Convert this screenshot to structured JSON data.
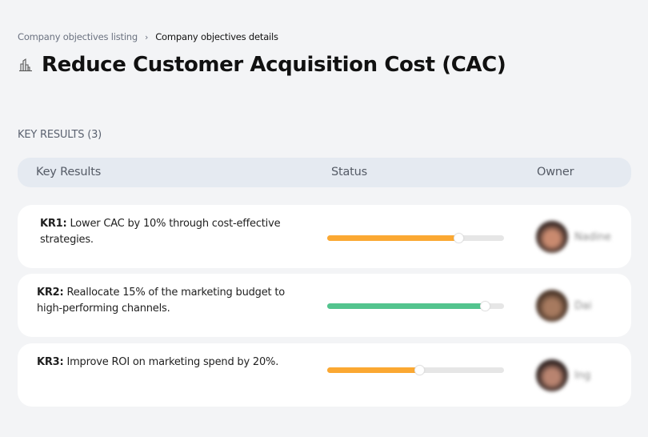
{
  "breadcrumb": {
    "items": [
      {
        "label": "Company objectives listing"
      },
      {
        "label": "Company objectives details"
      }
    ],
    "separator": "›"
  },
  "page": {
    "icon": "buildings-icon",
    "title": "Reduce Customer Acquisition Cost (CAC)"
  },
  "key_results_section": {
    "label": "KEY RESULTS (3)",
    "count": 3
  },
  "table": {
    "columns": [
      "Key Results",
      "Status",
      "Owner"
    ],
    "rows": [
      {
        "id": "KR1:",
        "text": " Lower CAC by 10% through cost-effective strategies.",
        "progress": 74,
        "status_color": "#fba832",
        "owner": {
          "name": "Nadine",
          "avatar_colors": [
            "#3a2a26",
            "#c98a6f"
          ]
        }
      },
      {
        "id": "KR2:",
        "text": " Reallocate 15% of the marketing budget to high-performing channels.",
        "progress": 89,
        "status_color": "#53c48e",
        "owner": {
          "name": "Dai",
          "avatar_colors": [
            "#4a3528",
            "#a77a5f"
          ]
        }
      },
      {
        "id": "KR3:",
        "text": " Improve ROI on marketing spend by 20%.",
        "progress": 52,
        "status_color": "#fba832",
        "owner": {
          "name": "Ing",
          "avatar_colors": [
            "#2f2220",
            "#b98470"
          ]
        }
      }
    ]
  },
  "colors": {
    "background": "#f3f4f6",
    "header_bg": "#e5eaf1",
    "track": "#e6e6e6",
    "orange": "#fba832",
    "green": "#53c48e"
  }
}
